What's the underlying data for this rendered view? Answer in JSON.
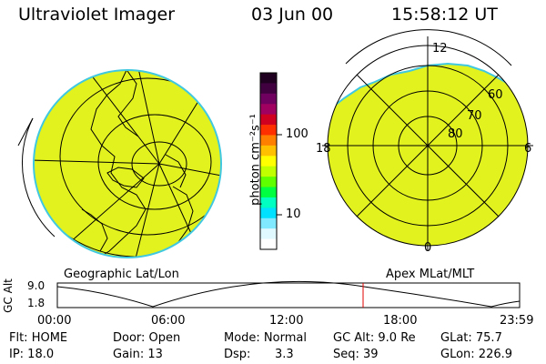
{
  "header": {
    "instrument": "Ultraviolet Imager",
    "date": "03 Jun 00",
    "time": "15:58:12 UT"
  },
  "colorbar": {
    "unit_label": "photon cm⁻²s⁻¹",
    "ticks": [
      "100",
      "10"
    ],
    "colors": [
      "#200020",
      "#400040",
      "#700060",
      "#a00060",
      "#d00020",
      "#ff3000",
      "#ff8000",
      "#ffc000",
      "#ffff00",
      "#c0ff00",
      "#60ff00",
      "#00ff40",
      "#00ffc0",
      "#00e0ff",
      "#80e8ff",
      "#e0f8ff",
      "#ffffff"
    ]
  },
  "left_map": {
    "caption": "Geographic Lat/Lon",
    "fill_color": "#e2f21e"
  },
  "right_map": {
    "caption": "Apex MLat/MLT",
    "fill_color": "#e2f21e",
    "mlt_labels": {
      "top": "12",
      "left": "18",
      "right": "6",
      "bottom": "0"
    },
    "lat_labels": [
      "60",
      "70",
      "80"
    ]
  },
  "altitude_plot": {
    "ylabel": "GC Alt",
    "y_ticks": [
      "9.0",
      "1.8"
    ],
    "x_ticks": [
      "00:00",
      "06:00",
      "12:00",
      "18:00",
      "23:59"
    ],
    "marker_color": "#e00000"
  },
  "status": {
    "flt": "Flt: HOME",
    "ip": "IP: 18.0",
    "door": "Door: Open",
    "gain": "Gain: 13",
    "mode": "Mode: Normal",
    "dsp_label": "Dsp:",
    "dsp_value": "3.3",
    "gcalt": "GC Alt: 9.0 Re",
    "seq": "Seq: 39",
    "glat": "GLat:  75.7",
    "glon": "GLon: 226.9"
  }
}
